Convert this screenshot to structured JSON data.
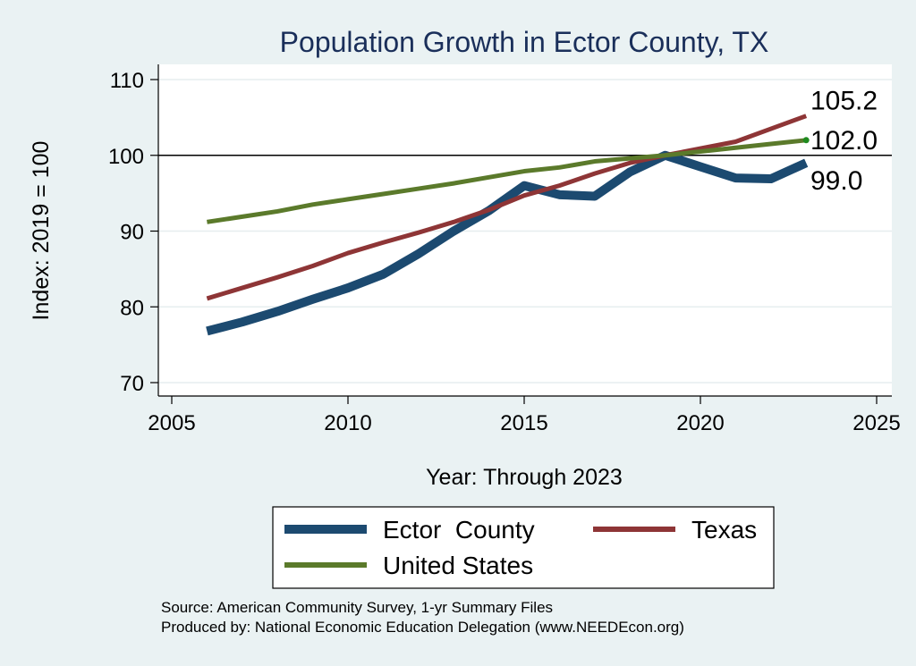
{
  "chart_data": {
    "type": "line",
    "title": "Population Growth in Ector County, TX",
    "xlabel": "Year: Through 2023",
    "ylabel": "Index: 2019 = 100",
    "xlim": [
      2005,
      2025
    ],
    "ylim": [
      70,
      110
    ],
    "x_ticks": [
      2005,
      2010,
      2015,
      2020,
      2025
    ],
    "y_ticks": [
      70,
      80,
      90,
      100,
      110
    ],
    "reference_line": 100,
    "legend_position": "bottom",
    "x": [
      2006,
      2007,
      2008,
      2009,
      2010,
      2011,
      2012,
      2013,
      2014,
      2015,
      2016,
      2017,
      2018,
      2019,
      2020,
      2021,
      2022,
      2023
    ],
    "series": [
      {
        "name": "Ector  County",
        "color": "#1c4a70",
        "values": [
          76.8,
          78.0,
          79.4,
          81.0,
          82.5,
          84.3,
          87.0,
          90.0,
          92.7,
          96.0,
          94.8,
          94.6,
          97.8,
          100.0,
          98.5,
          97.0,
          96.9,
          99.0
        ],
        "end_label": "99.0"
      },
      {
        "name": "Texas",
        "color": "#8e3536",
        "values": [
          81.1,
          82.5,
          83.9,
          85.4,
          87.1,
          88.5,
          89.8,
          91.2,
          92.8,
          94.7,
          96.0,
          97.6,
          99.0,
          100.0,
          100.9,
          101.8,
          103.5,
          105.2
        ],
        "end_label": "105.2"
      },
      {
        "name": "United States",
        "color": "#5b7a2b",
        "values": [
          91.2,
          91.9,
          92.6,
          93.5,
          94.2,
          94.9,
          95.6,
          96.3,
          97.1,
          97.9,
          98.4,
          99.2,
          99.6,
          100.0,
          100.5,
          101.0,
          101.5,
          102.0
        ],
        "end_label": "102.0"
      }
    ],
    "source_lines": [
      "Source: American Community Survey, 1-yr Summary Files",
      "Produced by: National Economic Education Delegation (www.NEEDEcon.org)"
    ]
  }
}
